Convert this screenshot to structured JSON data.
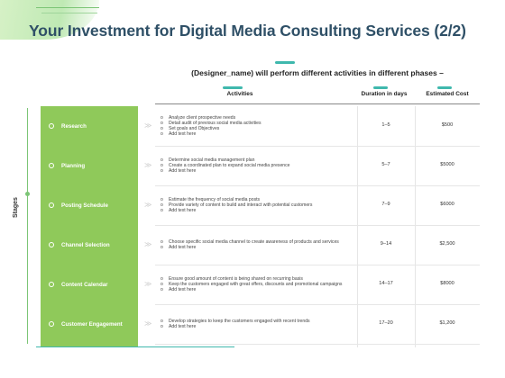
{
  "title": "Your Investment for Digital Media Consulting Services (2/2)",
  "subtitle": "(Designer_name) will perform different activities in different phases –",
  "stages_label": "Stages",
  "headers": {
    "activities": "Activities",
    "duration": "Duration in days",
    "cost": "Estimated Cost"
  },
  "bullet_glyph": "o",
  "arrow_glyph": "≫",
  "rows": [
    {
      "stage": "Research",
      "activities": [
        "Analyze client prospective needs",
        "Detail audit of previous social media activities",
        "Set goals and Objectives",
        "Add text here"
      ],
      "duration": "1–5",
      "cost": "$500"
    },
    {
      "stage": "Planning",
      "activities": [
        "Determine social media management plan",
        "Create a coordinated plan to expand social media presence",
        "Add text here"
      ],
      "duration": "5–7",
      "cost": "$5000"
    },
    {
      "stage": "Posting Schedule",
      "activities": [
        "Estimate the frequency of social media posts",
        "Provide variety of content to build and interact with potential customers",
        "Add text here"
      ],
      "duration": "7–9",
      "cost": "$6000"
    },
    {
      "stage": "Channel Selection",
      "activities": [
        "Choose specific social media channel to create awareness of products and services",
        "Add text here"
      ],
      "duration": "9–14",
      "cost": "$2,500"
    },
    {
      "stage": "Content Calendar",
      "activities": [
        "Ensure good amount of content is being shared on recurring basis",
        "Keep the customers engaged with great offers, discounts and promotional campaigns",
        "Add text here"
      ],
      "duration": "14–17",
      "cost": "$8000"
    },
    {
      "stage": "Customer Engagement",
      "activities": [
        "Develop strategies to keep the customers engaged with recent trends",
        "Add text here"
      ],
      "duration": "17–20",
      "cost": "$1,200"
    }
  ]
}
